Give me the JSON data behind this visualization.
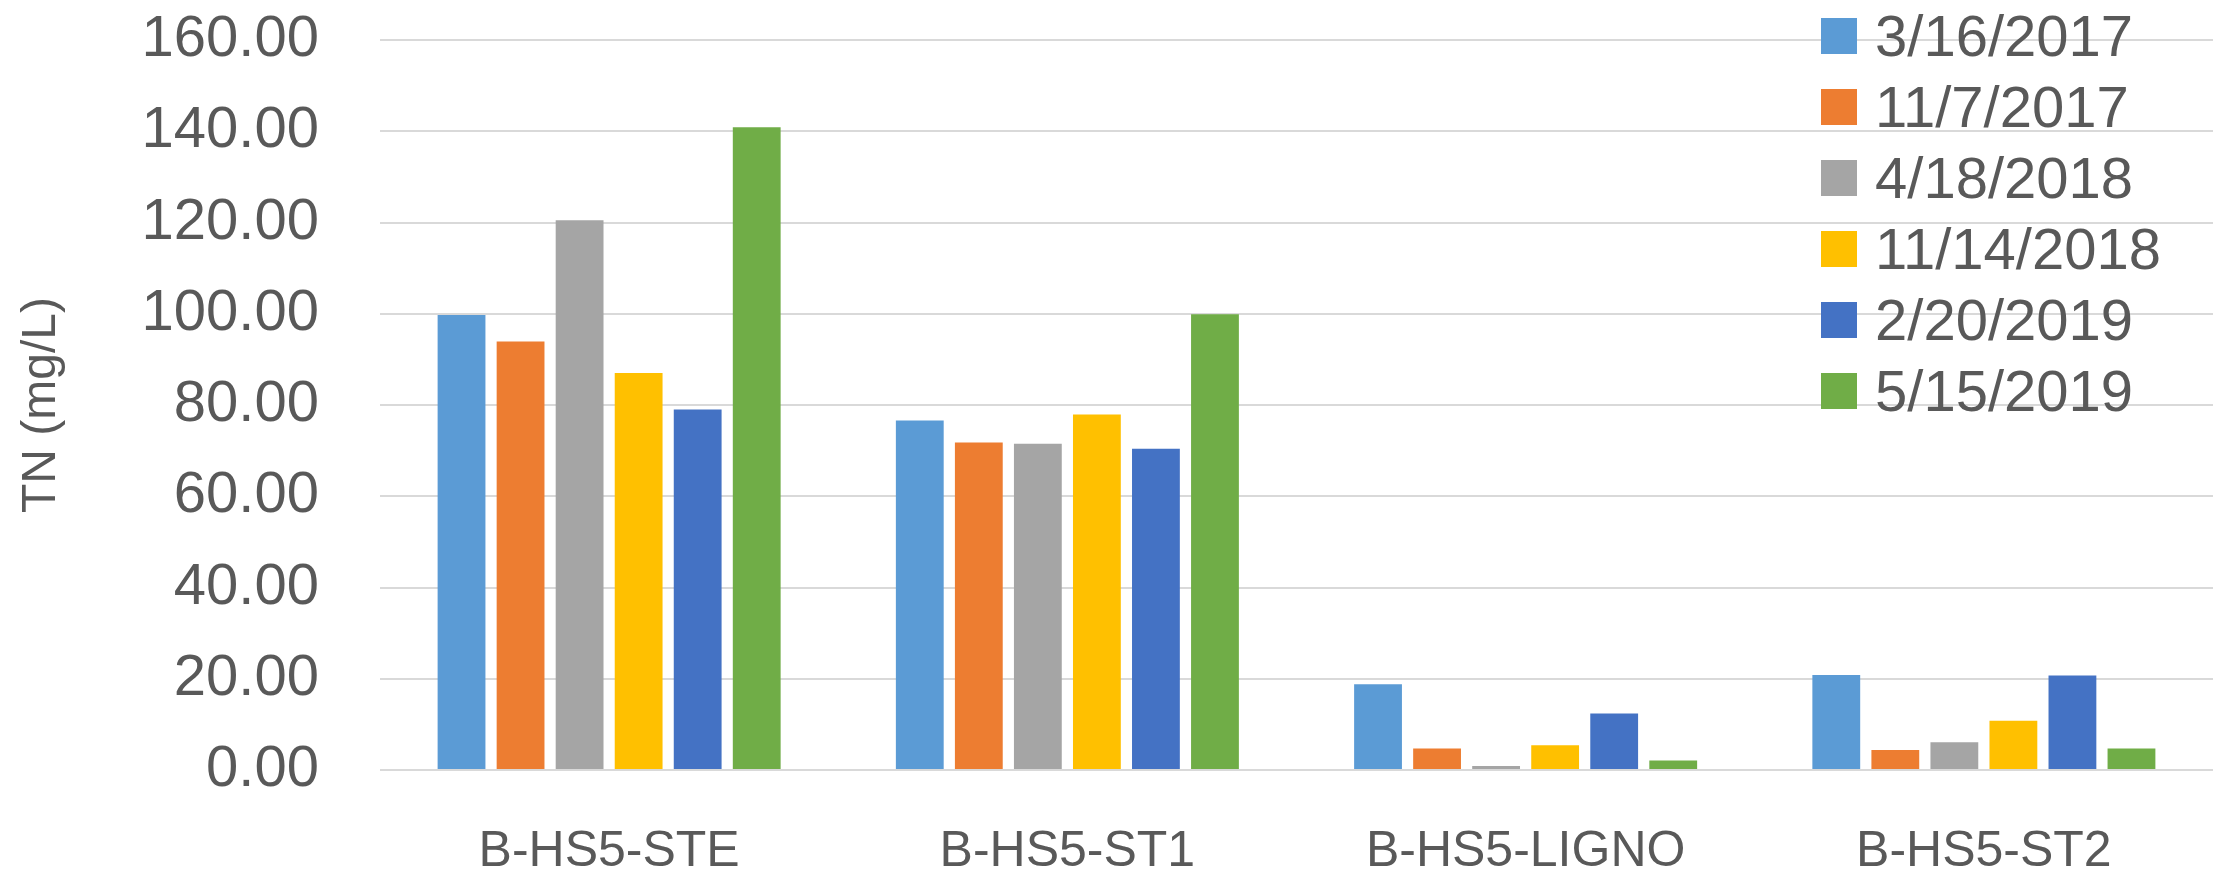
{
  "chart_data": {
    "type": "bar",
    "ylabel": "TN (mg/L)",
    "categories": [
      "B-HS5-STE",
      "B-HS5-ST1",
      "B-HS5-LIGNO",
      "B-HS5-ST2"
    ],
    "series": [
      {
        "name": "3/16/2017",
        "color": "#5b9bd5",
        "values": [
          99.7,
          76.6,
          18.8,
          20.8
        ]
      },
      {
        "name": "11/7/2017",
        "color": "#ed7d31",
        "values": [
          93.9,
          71.8,
          4.7,
          4.4
        ]
      },
      {
        "name": "4/18/2018",
        "color": "#a5a5a5",
        "values": [
          120.5,
          71.5,
          0.9,
          6.1
        ]
      },
      {
        "name": "11/14/2018",
        "color": "#ffc000",
        "values": [
          87.0,
          77.9,
          5.4,
          10.8
        ]
      },
      {
        "name": "2/20/2019",
        "color": "#4472c4",
        "values": [
          79.0,
          70.4,
          12.4,
          20.7
        ]
      },
      {
        "name": "5/15/2019",
        "color": "#70ad47",
        "values": [
          140.9,
          99.9,
          2.1,
          4.7
        ]
      }
    ],
    "ylim": [
      0,
      160
    ],
    "yticks": [
      {
        "value": 0,
        "label": "0.00"
      },
      {
        "value": 20,
        "label": "20.00"
      },
      {
        "value": 40,
        "label": "40.00"
      },
      {
        "value": 60,
        "label": "60.00"
      },
      {
        "value": 80,
        "label": "80.00"
      },
      {
        "value": 100,
        "label": "100.00"
      },
      {
        "value": 120,
        "label": "120.00"
      },
      {
        "value": 140,
        "label": "140.00"
      },
      {
        "value": 160,
        "label": "160.00"
      }
    ],
    "grid": "y",
    "legend": "top right"
  }
}
